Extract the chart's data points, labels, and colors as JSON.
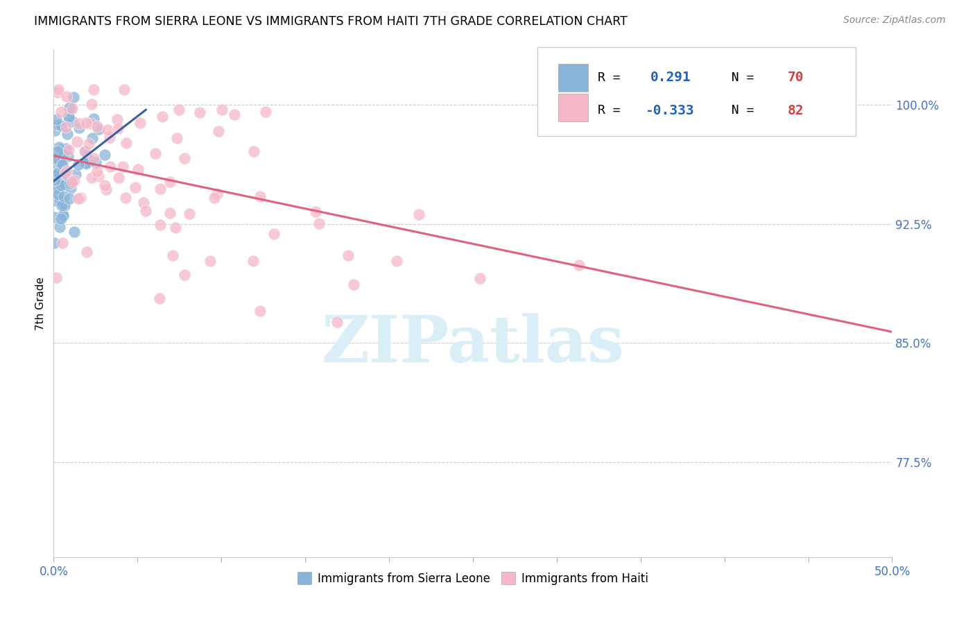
{
  "title": "IMMIGRANTS FROM SIERRA LEONE VS IMMIGRANTS FROM HAITI 7TH GRADE CORRELATION CHART",
  "source": "Source: ZipAtlas.com",
  "ylabel": "7th Grade",
  "ytick_labels": [
    "100.0%",
    "92.5%",
    "85.0%",
    "77.5%"
  ],
  "ytick_values": [
    1.0,
    0.925,
    0.85,
    0.775
  ],
  "xlim": [
    0.0,
    0.5
  ],
  "ylim": [
    0.715,
    1.035
  ],
  "legend_r1": "R =  0.291",
  "legend_n1": "N = 70",
  "legend_r2": "R = -0.333",
  "legend_n2": "N = 82",
  "sierra_leone_color": "#89b4d9",
  "sierra_leone_edge": "#89b4d9",
  "haiti_color": "#f5b8c8",
  "haiti_edge": "#f5b8c8",
  "trendline_blue": "#3a5fa0",
  "trendline_pink": "#e06080",
  "watermark_text": "ZIPatlas",
  "watermark_color": "#daeef8",
  "r_value_color": "#2060c0",
  "n_value_color": "#d04040",
  "tick_color": "#4472c4",
  "xtick_count": 11,
  "sl_trendline_x0": 0.0,
  "sl_trendline_x1": 0.055,
  "sl_trendline_y0": 0.952,
  "sl_trendline_y1": 0.997,
  "ht_trendline_x0": 0.0,
  "ht_trendline_x1": 0.5,
  "ht_trendline_y0": 0.968,
  "ht_trendline_y1": 0.857
}
